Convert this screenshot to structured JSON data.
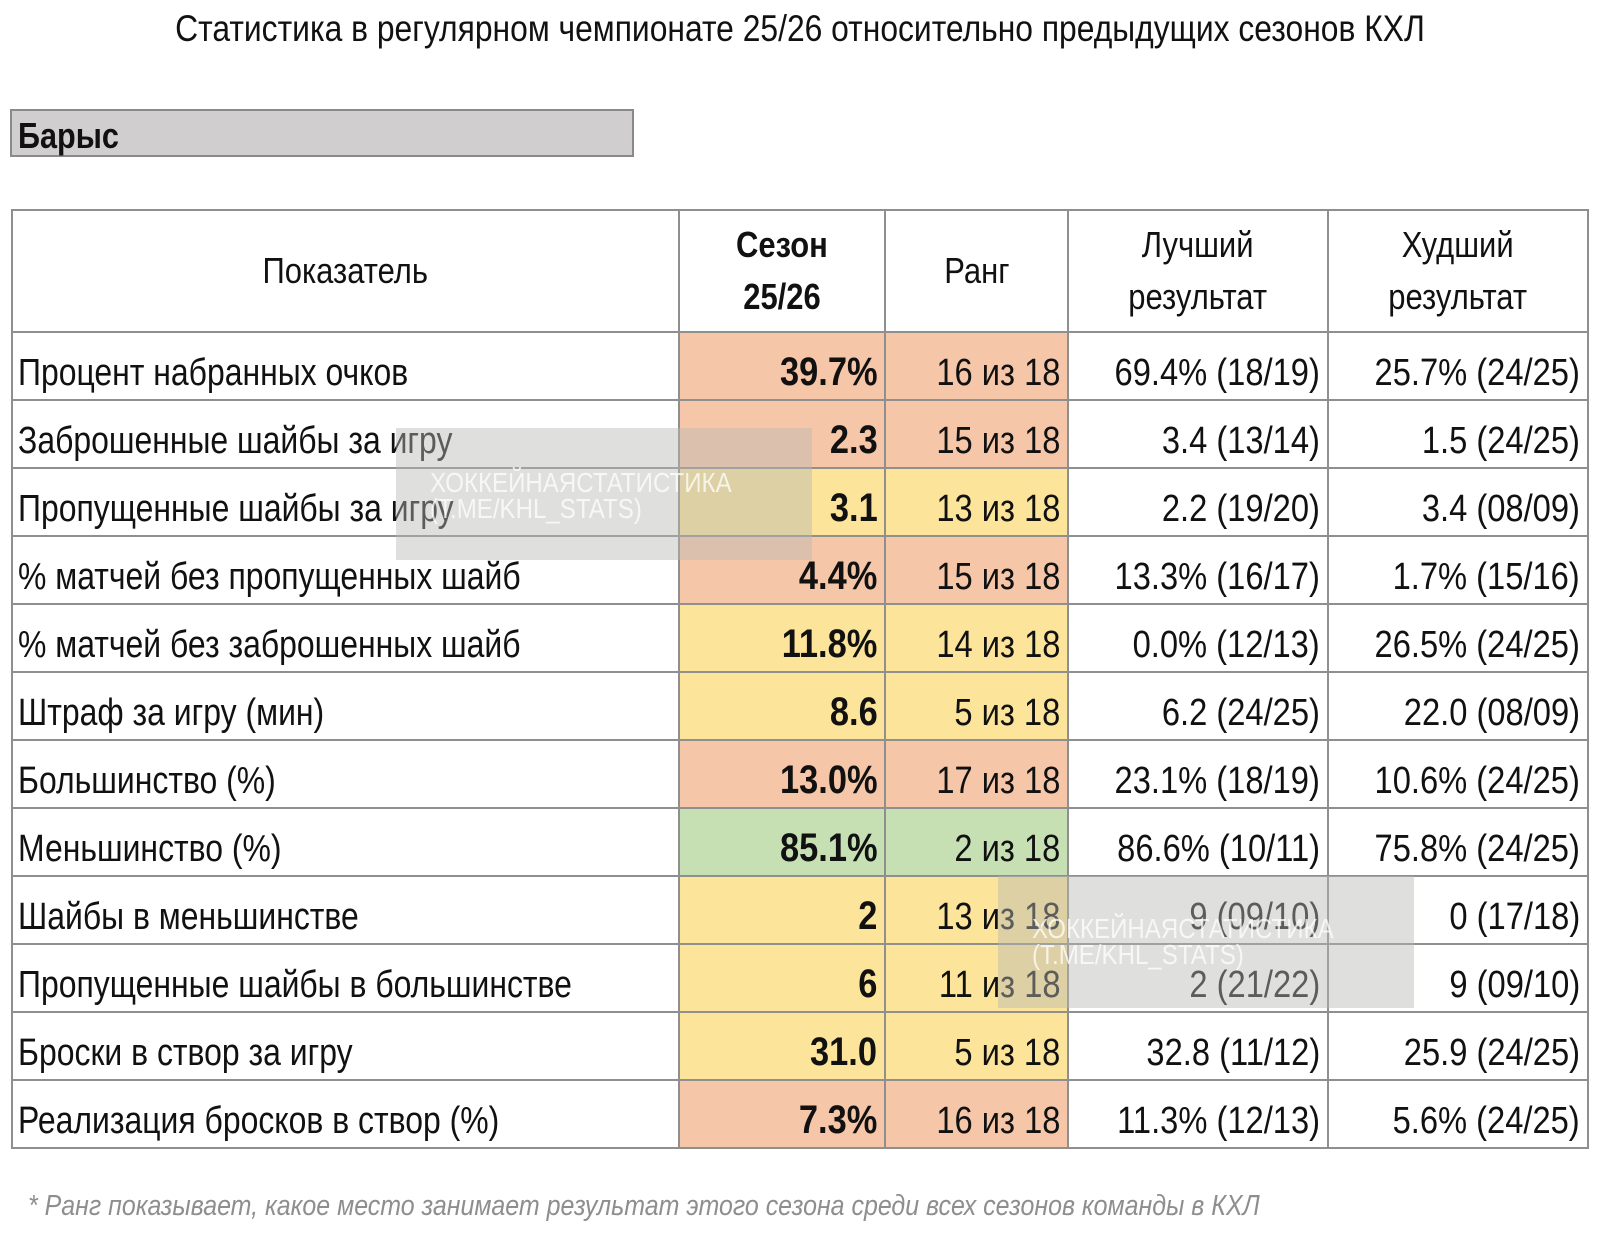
{
  "title": "Статистика в регулярном чемпионате 25/26 относительно предыдущих сезонов КХЛ",
  "team": "Барыс",
  "colors": {
    "red": "#f6c6a8",
    "yellow": "#fce49a",
    "green": "#c6e0b4",
    "team_box": "#d0cecf",
    "border": "#8f8f8f"
  },
  "table": {
    "headers": {
      "metric": "Показатель",
      "season": "Сезон 25/26",
      "rank": "Ранг",
      "best_line1": "Лучший",
      "best_line2": "результат",
      "worst_line1": "Худший",
      "worst_line2": "результат"
    },
    "rows": [
      {
        "metric": "Процент набранных очков",
        "season": "39.7%",
        "rank": "16 из 18",
        "best": "69.4% (18/19)",
        "worst": "25.7% (24/25)",
        "color": "red"
      },
      {
        "metric": "Заброшенные шайбы за игру",
        "season": "2.3",
        "rank": "15 из 18",
        "best": "3.4 (13/14)",
        "worst": "1.5 (24/25)",
        "color": "red"
      },
      {
        "metric": "Пропущенные шайбы за игру",
        "season": "3.1",
        "rank": "13 из 18",
        "best": "2.2 (19/20)",
        "worst": "3.4 (08/09)",
        "color": "yellow"
      },
      {
        "metric": "% матчей без пропущенных шайб",
        "season": "4.4%",
        "rank": "15 из 18",
        "best": "13.3% (16/17)",
        "worst": "1.7% (15/16)",
        "color": "red"
      },
      {
        "metric": "% матчей без заброшенных шайб",
        "season": "11.8%",
        "rank": "14 из 18",
        "best": "0.0% (12/13)",
        "worst": "26.5% (24/25)",
        "color": "yellow"
      },
      {
        "metric": "Штраф за игру (мин)",
        "season": "8.6",
        "rank": "5 из 18",
        "best": "6.2 (24/25)",
        "worst": "22.0 (08/09)",
        "color": "yellow"
      },
      {
        "metric": "Большинство (%)",
        "season": "13.0%",
        "rank": "17 из 18",
        "best": "23.1% (18/19)",
        "worst": "10.6% (24/25)",
        "color": "red"
      },
      {
        "metric": "Меньшинство (%)",
        "season": "85.1%",
        "rank": "2 из 18",
        "best": "86.6% (10/11)",
        "worst": "75.8% (24/25)",
        "color": "green"
      },
      {
        "metric": "Шайбы в меньшинстве",
        "season": "2",
        "rank": "13 из 18",
        "best": "9 (09/10)",
        "worst": "0 (17/18)",
        "color": "yellow"
      },
      {
        "metric": "Пропущенные шайбы в большинстве",
        "season": "6",
        "rank": "11 из 18",
        "best": "2 (21/22)",
        "worst": "9 (09/10)",
        "color": "yellow"
      },
      {
        "metric": "Броски в створ за игру",
        "season": "31.0",
        "rank": "5 из 18",
        "best": "32.8 (11/12)",
        "worst": "25.9 (24/25)",
        "color": "yellow"
      },
      {
        "metric": "Реализация бросков в створ (%)",
        "season": "7.3%",
        "rank": "16 из 18",
        "best": "11.3% (12/13)",
        "worst": "5.6% (24/25)",
        "color": "red"
      }
    ]
  },
  "footnote": "* Ранг показывает, какое место занимает результат этого сезона среди всех сезонов команды в КХЛ",
  "watermark": {
    "line1": "ХОККЕЙНАЯСТАТИСТИКА",
    "line2": "(T.ME/KHL_STATS)"
  }
}
